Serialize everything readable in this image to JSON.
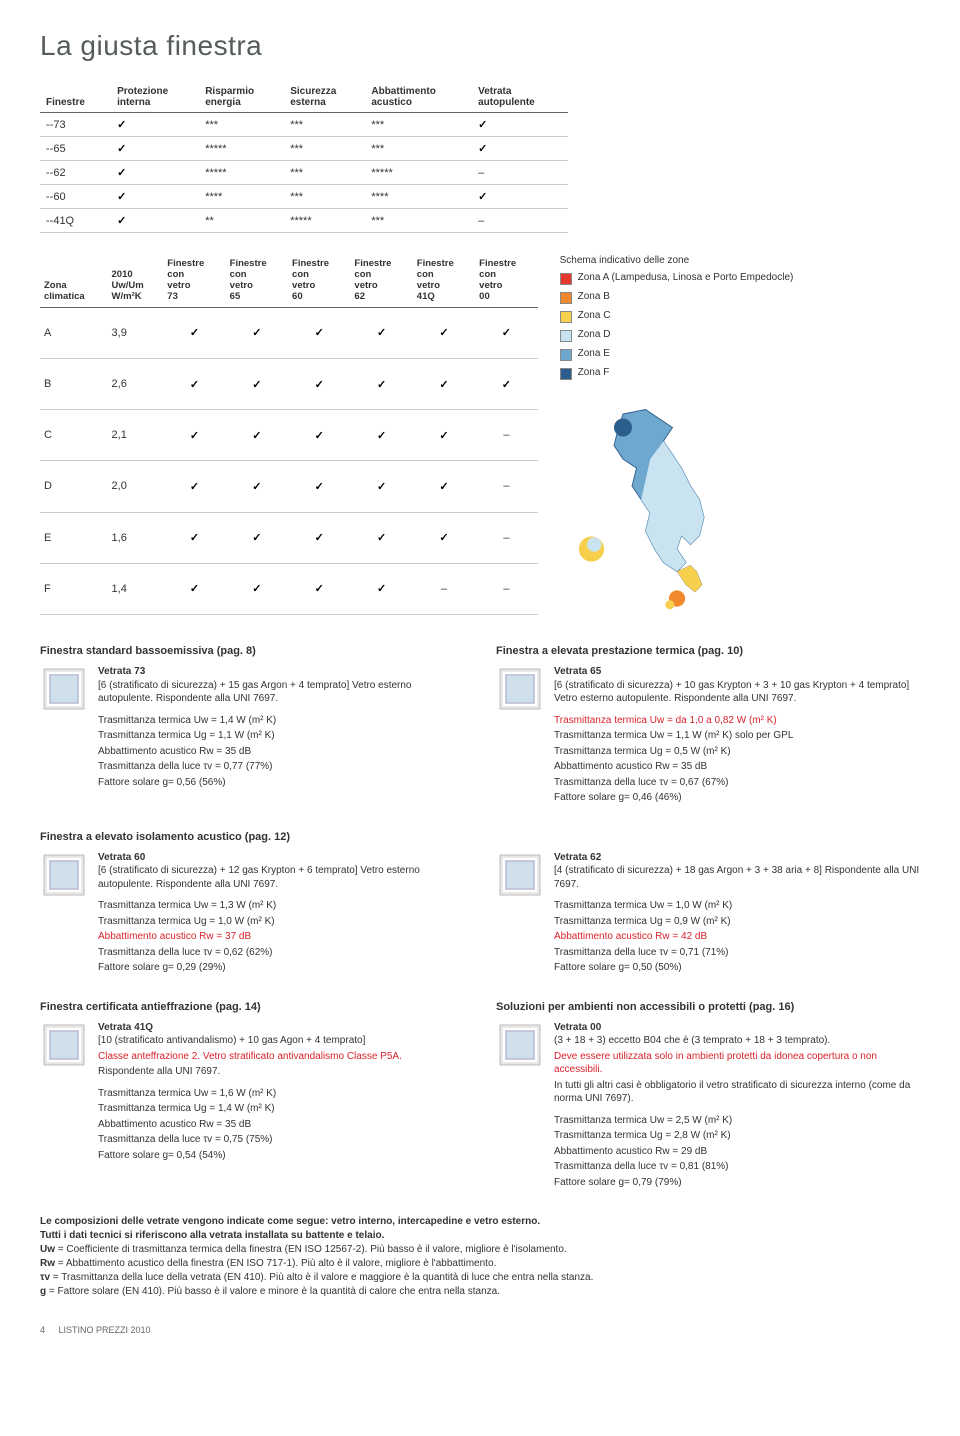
{
  "title": "La giusta finestra",
  "table1": {
    "headers": [
      "Finestre",
      "Protezione interna",
      "Risparmio energia",
      "Sicurezza esterna",
      "Abbattimento acustico",
      "Vetrata autopulente"
    ],
    "rows": [
      {
        "name": "--73",
        "cells": [
          "check",
          "***",
          "***",
          "***",
          "check"
        ]
      },
      {
        "name": "--65",
        "cells": [
          "check",
          "*****",
          "***",
          "***",
          "check"
        ]
      },
      {
        "name": "--62",
        "cells": [
          "check",
          "*****",
          "***",
          "*****",
          "–"
        ]
      },
      {
        "name": "--60",
        "cells": [
          "check",
          "****",
          "***",
          "****",
          "check"
        ]
      },
      {
        "name": "--41Q",
        "cells": [
          "check",
          "**",
          "*****",
          "***",
          "–"
        ]
      }
    ]
  },
  "table2": {
    "headers": [
      "Zona climatica",
      "2010 Uw/Um W/m²K",
      "Finestre con vetro 73",
      "Finestre con vetro 65",
      "Finestre con vetro 60",
      "Finestre con vetro 62",
      "Finestre con vetro 41Q",
      "Finestre con vetro 00"
    ],
    "rows": [
      {
        "zone": "A",
        "val": "3,9",
        "c": [
          "check",
          "check",
          "check",
          "check",
          "check",
          "check"
        ]
      },
      {
        "zone": "B",
        "val": "2,6",
        "c": [
          "check",
          "check",
          "check",
          "check",
          "check",
          "check"
        ]
      },
      {
        "zone": "C",
        "val": "2,1",
        "c": [
          "check",
          "check",
          "check",
          "check",
          "check",
          "–"
        ]
      },
      {
        "zone": "D",
        "val": "2,0",
        "c": [
          "check",
          "check",
          "check",
          "check",
          "check",
          "–"
        ]
      },
      {
        "zone": "E",
        "val": "1,6",
        "c": [
          "check",
          "check",
          "check",
          "check",
          "check",
          "–"
        ]
      },
      {
        "zone": "F",
        "val": "1,4",
        "c": [
          "check",
          "check",
          "check",
          "check",
          "–",
          "–"
        ]
      }
    ]
  },
  "legend": {
    "title": "Schema indicativo delle zone",
    "items": [
      {
        "color": "#e63a2e",
        "label": "Zona A (Lampedusa, Linosa e Porto Empedocle)"
      },
      {
        "color": "#f08a2c",
        "label": "Zona B"
      },
      {
        "color": "#f6d04d",
        "label": "Zona C"
      },
      {
        "color": "#c9e3f0",
        "label": "Zona D"
      },
      {
        "color": "#6fa8cf",
        "label": "Zona E"
      },
      {
        "color": "#2b5e8d",
        "label": "Zona F"
      }
    ]
  },
  "sections": [
    {
      "heading": "Finestra standard bassoemissiva (pag. 8)",
      "name": "Vetrata 73",
      "desc": "[6 (stratificato di sicurezza) + 15 gas Argon + 4 temprato] Vetro esterno autopulente. Rispondente alla UNI 7697.",
      "lines": [
        {
          "t": "Trasmittanza termica Uw = 1,4 W (m² K)"
        },
        {
          "t": "Trasmittanza termica Ug = 1,1 W (m² K)"
        },
        {
          "t": "Abbattimento acustico Rw = 35 dB"
        },
        {
          "t": "Trasmittanza della luce τv = 0,77 (77%)"
        },
        {
          "t": "Fattore solare g= 0,56 (56%)"
        }
      ]
    },
    {
      "heading": "Finestra a elevata prestazione termica (pag. 10)",
      "name": "Vetrata 65",
      "desc": "[6 (stratificato di sicurezza) + 10 gas Krypton + 3 + 10 gas Krypton + 4 temprato] Vetro esterno autopulente. Rispondente alla UNI 7697.",
      "lines": [
        {
          "t": "Trasmittanza termica Uw = da 1,0 a 0,82 W (m² K)",
          "red": true
        },
        {
          "t": "Trasmittanza termica Uw = 1,1 W (m² K) solo per GPL"
        },
        {
          "t": "Trasmittanza termica Ug = 0,5 W (m² K)"
        },
        {
          "t": "Abbattimento acustico Rw = 35 dB"
        },
        {
          "t": "Trasmittanza della luce τv = 0,67 (67%)"
        },
        {
          "t": "Fattore solare g= 0,46 (46%)"
        }
      ]
    },
    {
      "heading": "Finestra a elevato isolamento acustico (pag. 12)",
      "name": "Vetrata 60",
      "desc": "[6 (stratificato di sicurezza) + 12 gas Krypton + 6 temprato] Vetro esterno autopulente. Rispondente alla UNI 7697.",
      "lines": [
        {
          "t": "Trasmittanza termica Uw = 1,3 W (m² K)"
        },
        {
          "t": "Trasmittanza termica Ug = 1,0 W (m² K)"
        },
        {
          "t": "Abbattimento acustico Rw = 37 dB",
          "red": true
        },
        {
          "t": "Trasmittanza della luce τv = 0,62 (62%)"
        },
        {
          "t": "Fattore solare g= 0,29 (29%)"
        }
      ]
    },
    {
      "heading": "",
      "name": "Vetrata 62",
      "desc": "[4 (stratificato di sicurezza) + 18 gas Argon + 3 + 38 aria + 8] Rispondente alla UNI 7697.",
      "lines": [
        {
          "t": "Trasmittanza termica Uw = 1,0 W (m² K)"
        },
        {
          "t": "Trasmittanza termica Ug = 0,9 W (m² K)"
        },
        {
          "t": "Abbattimento acustico Rw = 42 dB",
          "red": true
        },
        {
          "t": "Trasmittanza della luce τv = 0,71 (71%)"
        },
        {
          "t": "Fattore solare g= 0,50 (50%)"
        }
      ]
    },
    {
      "heading": "Finestra certificata antieffrazione (pag. 14)",
      "name": "Vetrata 41Q",
      "desc": "[10 (stratificato antivandalismo) + 10 gas Agon + 4 temprato]",
      "extra": "Classe anteffrazione 2. Vetro stratificato antivandalismo Classe P5A.",
      "extra2": "Rispondente alla UNI 7697.",
      "lines": [
        {
          "t": "Trasmittanza termica Uw = 1,6 W (m² K)"
        },
        {
          "t": "Trasmittanza termica Ug = 1,4 W (m² K)"
        },
        {
          "t": "Abbattimento acustico Rw = 35 dB"
        },
        {
          "t": "Trasmittanza della luce τv = 0,75 (75%)"
        },
        {
          "t": "Fattore solare g= 0,54 (54%)"
        }
      ]
    },
    {
      "heading": "Soluzioni per ambienti non accessibili o protetti (pag. 16)",
      "name": "Vetrata 00",
      "desc": "(3 + 18 + 3) eccetto B04 che è (3 temprato + 18 + 3 temprato).",
      "extra": "Deve essere utilizzata solo in ambienti protetti da idonea copertura o non accessibili.",
      "extra2": "In tutti gli altri casi è obbligatorio il vetro stratificato di sicurezza interno (come da norma UNI 7697).",
      "lines": [
        {
          "t": "Trasmittanza termica Uw = 2,5 W (m² K)"
        },
        {
          "t": "Trasmittanza termica Ug = 2,8 W (m² K)"
        },
        {
          "t": "Abbattimento acustico Rw = 29 dB"
        },
        {
          "t": "Trasmittanza della luce τv = 0,81 (81%)"
        },
        {
          "t": "Fattore solare g= 0,79 (79%)"
        }
      ]
    }
  ],
  "notes": {
    "l1": "Le composizioni delle vetrate vengono indicate come segue: vetro interno, intercapedine e vetro esterno.",
    "l2": "Tutti i dati tecnici si riferiscono alla vetrata installata su battente e telaio.",
    "defs": [
      {
        "k": "Uw",
        "v": "= Coefficiente di trasmittanza termica della finestra (EN ISO 12567-2). Più basso è il valore, migliore è l'isolamento."
      },
      {
        "k": "Rw",
        "v": "= Abbattimento acustico della finestra (EN ISO 717-1). Più alto è il valore, migliore è l'abbattimento."
      },
      {
        "k": "τv",
        "v": "= Trasmittanza della luce della vetrata (EN 410). Più alto è il valore e maggiore è la quantità di luce che entra nella stanza."
      },
      {
        "k": "g",
        "v": "= Fattore solare (EN 410). Più basso è il valore e minore è la quantità di calore che entra nella stanza."
      }
    ]
  },
  "footer": {
    "page": "4",
    "label": "LISTINO PREZZI 2010"
  }
}
